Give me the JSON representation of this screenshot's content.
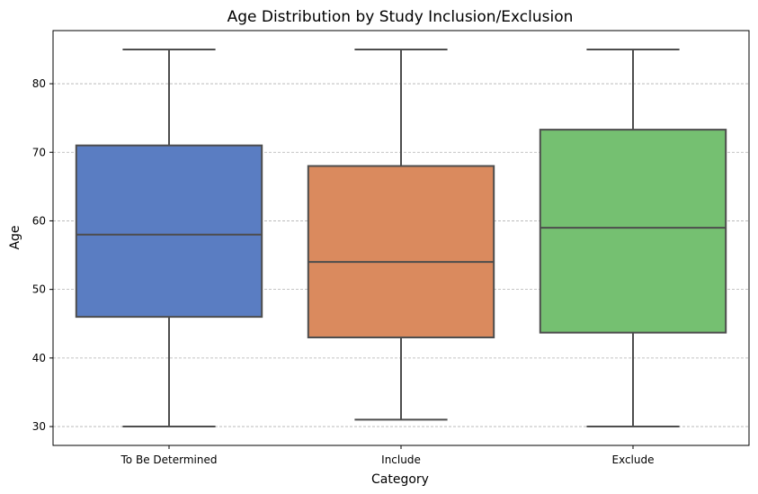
{
  "chart_data": {
    "type": "box",
    "title": "Age Distribution by Study Inclusion/Exclusion",
    "xlabel": "Category",
    "ylabel": "Age",
    "ylim": [
      27.25,
      87.75
    ],
    "yticks": [
      30,
      40,
      50,
      60,
      70,
      80
    ],
    "grid": "y-dashed",
    "categories": [
      "To Be Determined",
      "Include",
      "Exclude"
    ],
    "boxes": [
      {
        "category": "To Be Determined",
        "min": 30,
        "q1": 46,
        "median": 58,
        "q3": 71,
        "max": 85,
        "color": "#5a7dc2"
      },
      {
        "category": "Include",
        "min": 31,
        "q1": 43,
        "median": 54,
        "q3": 68,
        "max": 85,
        "color": "#da8a5e"
      },
      {
        "category": "Exclude",
        "min": 30,
        "q1": 43.7,
        "median": 59,
        "q3": 73.3,
        "max": 85,
        "color": "#75c071"
      }
    ]
  }
}
